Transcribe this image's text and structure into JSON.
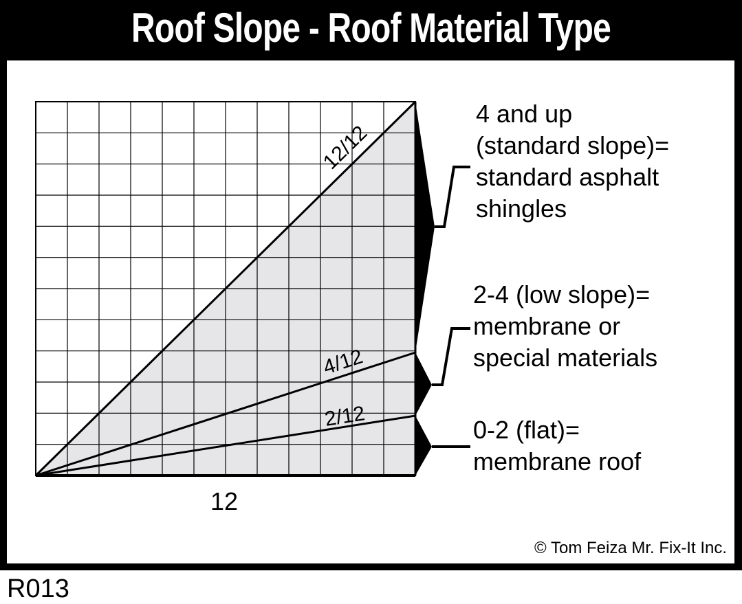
{
  "title": "Roof Slope - Roof Material Type",
  "diagram": {
    "run_label": "12",
    "slopes": [
      {
        "label": "12/12",
        "rise": 12,
        "run": 12
      },
      {
        "label": "4/12",
        "rise": 4,
        "run": 12
      },
      {
        "label": "2/12",
        "rise": 2,
        "run": 12
      }
    ],
    "grid": {
      "columns": 12,
      "rows": 12
    },
    "fill_color": "#e6e6e9"
  },
  "categories": [
    {
      "lines": [
        "4 and up",
        "(standard slope)=",
        "standard asphalt",
        "shingles"
      ]
    },
    {
      "lines": [
        "2-4 (low slope)=",
        "membrane or",
        "special materials"
      ]
    },
    {
      "lines": [
        "0-2 (flat)=",
        "membrane roof"
      ]
    }
  ],
  "credit": "© Tom Feiza Mr. Fix-It Inc.",
  "code": "R013"
}
